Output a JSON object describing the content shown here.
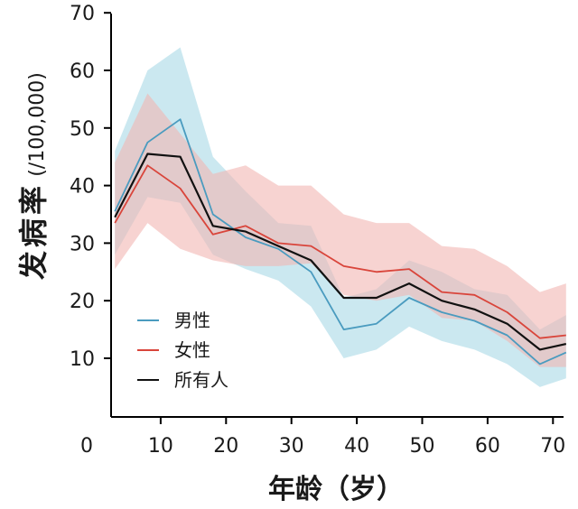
{
  "chart_data": {
    "type": "line",
    "title": "",
    "xlabel": "年龄（岁）",
    "ylabel_main": "发病率",
    "ylabel_unit": "(/100,000)",
    "xlim": [
      3,
      72
    ],
    "ylim": [
      5,
      70
    ],
    "x_ticks": [
      0,
      10,
      20,
      30,
      40,
      50,
      60,
      70
    ],
    "y_ticks": [
      10,
      20,
      30,
      40,
      50,
      60,
      70
    ],
    "x": [
      3,
      8,
      13,
      18,
      23,
      28,
      33,
      38,
      43,
      48,
      53,
      58,
      63,
      68,
      72
    ],
    "grid": false,
    "legend_position": "bottom-left",
    "series": [
      {
        "name": "男性",
        "color": "#4a9bbf",
        "band_color": "#a8d8e6",
        "values": [
          35.5,
          47.5,
          51.5,
          35,
          31,
          29,
          25,
          15,
          16,
          20.5,
          18,
          16.5,
          14,
          9,
          11
        ],
        "lower": [
          28,
          38,
          37,
          28,
          25.5,
          23.5,
          19,
          10,
          11.5,
          15.5,
          13,
          11.5,
          9,
          5,
          6.5
        ],
        "upper": [
          46,
          60,
          64,
          45,
          39,
          33.5,
          33,
          20.5,
          22,
          27,
          25,
          22,
          21,
          15,
          17.5
        ]
      },
      {
        "name": "女性",
        "color": "#d9453b",
        "band_color": "#f2b6b2",
        "values": [
          33.5,
          43.5,
          39.5,
          31.5,
          33,
          30,
          29.5,
          26,
          25,
          25.5,
          21.5,
          21,
          18,
          13.5,
          14
        ]
      },
      {
        "name": "所有人",
        "color": "#111111",
        "values": [
          34.5,
          45.5,
          45,
          33,
          32,
          29.5,
          27,
          20.5,
          20.5,
          23,
          20,
          18.5,
          16,
          11.5,
          12.5
        ]
      }
    ],
    "female_band": {
      "lower": [
        25.5,
        33.5,
        29,
        27,
        26,
        26,
        26.5,
        21,
        20,
        21,
        17,
        16.5,
        13,
        8.5,
        8.5
      ],
      "upper": [
        44,
        56,
        49,
        42,
        43.5,
        40,
        40,
        35,
        33.5,
        33.5,
        29.5,
        29,
        26,
        21.5,
        23
      ]
    }
  }
}
